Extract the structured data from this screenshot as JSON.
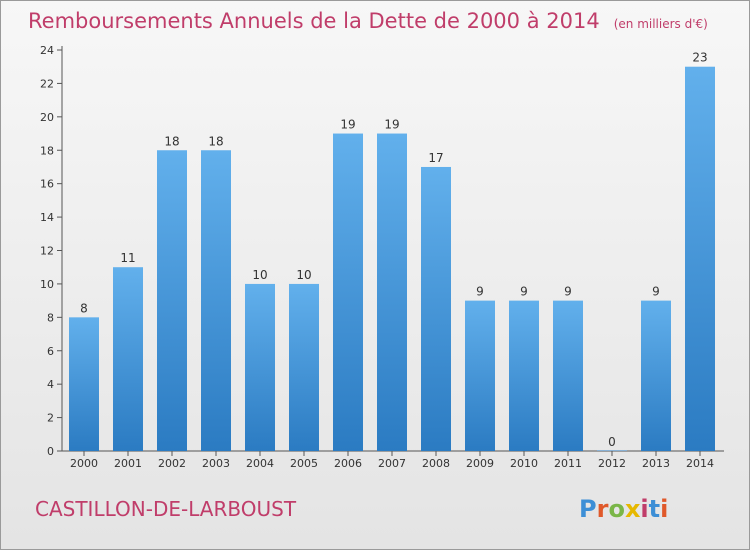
{
  "header": {
    "title": "Remboursements Annuels de la Dette de 2000 à 2014",
    "unit": "(en milliers d'€)"
  },
  "footer": {
    "place": "CASTILLON-DE-LARBOUST",
    "logo": "Proxiti"
  },
  "colors": {
    "bar_light": "#62b0ec",
    "bar_dark": "#2b7bc2",
    "title": "#c03d6a"
  },
  "chart_data": {
    "type": "bar",
    "title": "Remboursements Annuels de la Dette de 2000 à 2014",
    "subtitle": "(en milliers d'€)",
    "categories": [
      "2000",
      "2001",
      "2002",
      "2003",
      "2004",
      "2005",
      "2006",
      "2007",
      "2008",
      "2009",
      "2010",
      "2011",
      "2012",
      "2013",
      "2014"
    ],
    "values": [
      8,
      11,
      18,
      18,
      10,
      10,
      19,
      19,
      17,
      9,
      9,
      9,
      0,
      9,
      23
    ],
    "yticks": [
      0,
      2,
      4,
      6,
      8,
      10,
      12,
      14,
      16,
      18,
      20,
      22,
      24
    ],
    "ylim": [
      0,
      24
    ],
    "xlabel": "",
    "ylabel": "",
    "grid": false,
    "legend": "none"
  }
}
